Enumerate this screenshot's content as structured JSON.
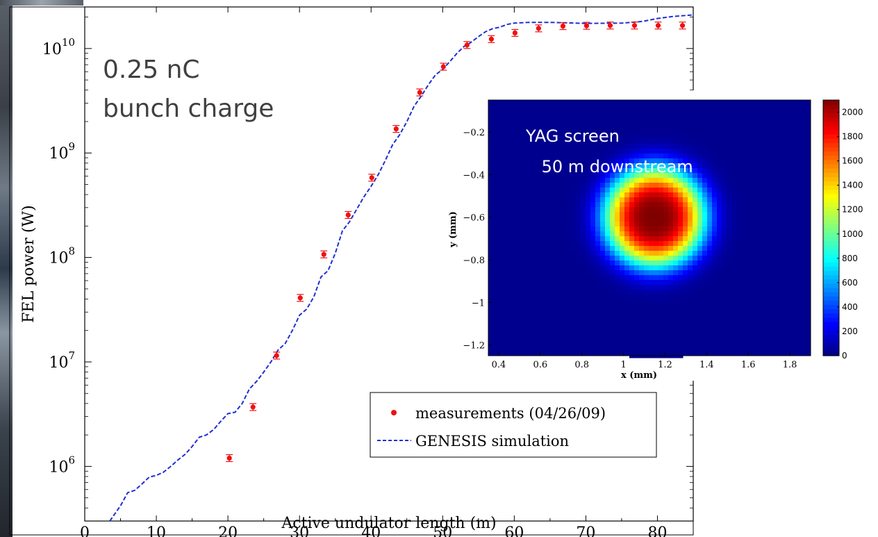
{
  "chart_data": [
    {
      "type": "scatter",
      "xlabel": "Active undulator length (m)",
      "ylabel": "FEL power (W)",
      "xlim": [
        0,
        85
      ],
      "ylim": [
        300000,
        25000000000
      ],
      "yscale": "log",
      "xticks": [
        "0",
        "10",
        "20",
        "30",
        "40",
        "50",
        "60",
        "70",
        "80"
      ],
      "ytick_mantissa": "10",
      "yticks_exp": [
        "6",
        "7",
        "8",
        "9",
        "10"
      ],
      "annotation": [
        "0.25 nC",
        "bunch charge"
      ],
      "legend_position": "bottom-right",
      "series": [
        {
          "name": "measurements (04/26/09)",
          "style": "points-with-errorbars",
          "color": "#ee1111",
          "x": [
            20.2,
            23.5,
            26.8,
            30.1,
            33.4,
            36.8,
            40.1,
            43.5,
            46.8,
            50.1,
            53.4,
            56.8,
            60.1,
            63.4,
            66.8,
            70.1,
            73.4,
            76.8,
            80.1,
            83.5
          ],
          "y": [
            1200000,
            3700000,
            11500000,
            41000000,
            107000000,
            255000000,
            580000000,
            1700000000,
            3800000000,
            6700000000,
            10800000000,
            12300000000,
            14100000000,
            15600000000,
            16400000000,
            16500000000,
            16600000000,
            16600000000,
            16600000000,
            16600000000
          ]
        },
        {
          "name": "GENESIS simulation",
          "style": "dashed-line",
          "color": "#1f2fd0",
          "x": [
            3.5,
            5,
            6,
            7,
            8,
            9,
            10,
            11,
            12,
            13,
            14,
            15,
            16,
            17,
            18,
            19,
            20,
            21,
            22,
            23,
            24,
            25,
            26,
            27,
            28,
            29,
            30,
            31,
            32,
            33,
            34,
            35,
            36,
            37,
            38,
            39,
            40,
            41,
            42,
            43,
            44,
            45,
            46,
            47,
            48,
            49,
            50,
            51,
            52,
            53,
            54,
            55,
            56,
            57,
            58,
            59,
            60,
            62,
            65,
            70,
            75,
            78,
            80,
            82,
            85
          ],
          "y": [
            280000,
            420000,
            560000,
            590000,
            680000,
            790000,
            820000,
            880000,
            1000000,
            1150000,
            1300000,
            1550000,
            1900000,
            2000000,
            2250000,
            2700000,
            3200000,
            3300000,
            4000000,
            5500000,
            6500000,
            8000000,
            10000000,
            13000000,
            15000000,
            20000000,
            28000000,
            32000000,
            42000000,
            65000000,
            75000000,
            110000000,
            180000000,
            220000000,
            290000000,
            380000000,
            480000000,
            620000000,
            850000000,
            1200000000,
            1500000000,
            2000000000,
            2800000000,
            3500000000,
            4500000000,
            5600000000,
            6300000000,
            7500000000,
            9000000000,
            10500000000,
            11500000000,
            13000000000,
            14500000000,
            15500000000,
            16000000000,
            17000000000,
            17500000000,
            17800000000,
            17800000000,
            17400000000,
            17500000000,
            18200000000,
            19400000000,
            20200000000,
            21000000000
          ]
        }
      ]
    },
    {
      "type": "heatmap",
      "xlabel": "x  (mm)",
      "ylabel": "y  (mm)",
      "xticks": [
        "0.4",
        "0.6",
        "0.8",
        "1",
        "1.2",
        "1.4",
        "1.6",
        "1.8"
      ],
      "xtick_values": [
        0.4,
        0.6,
        0.8,
        1.0,
        1.2,
        1.4,
        1.6,
        1.8
      ],
      "yticks": [
        "-0.2",
        "-0.4",
        "-0.6",
        "-0.8",
        "-1",
        "-1.2"
      ],
      "ytick_values": [
        -0.2,
        -0.4,
        -0.6,
        -0.8,
        -1.0,
        -1.2
      ],
      "xlim": [
        0.35,
        1.9
      ],
      "ylim": [
        -1.25,
        -0.05
      ],
      "annotation": [
        "YAG screen",
        " 50 m downstream"
      ],
      "colorbar": {
        "ticks": [
          "0",
          "200",
          "400",
          "600",
          "800",
          "1000",
          "1200",
          "1400",
          "1600",
          "1800",
          "2000"
        ],
        "range": [
          0,
          2100
        ],
        "colormap": "jet"
      },
      "spot": {
        "center_x_mm": 1.15,
        "center_y_mm": -0.6,
        "peak": 2100,
        "sigma_x_mm": 0.17,
        "sigma_y_mm": 0.165,
        "background": 30
      }
    }
  ]
}
